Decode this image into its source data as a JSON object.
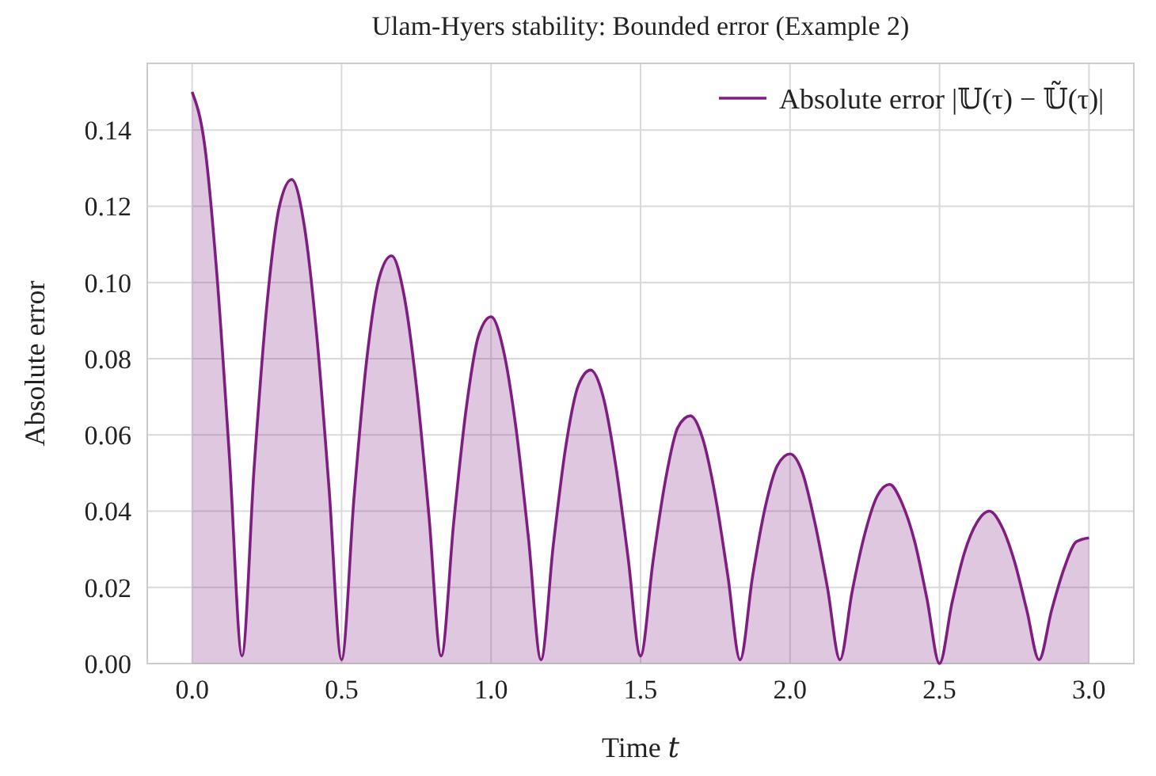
{
  "chart_data": {
    "type": "area",
    "title": "Ulam-Hyers stability: Bounded error (Example 2)",
    "xlabel": "Time 𝑡",
    "ylabel": "Absolute error",
    "x": [
      0,
      0.042,
      0.083,
      0.125,
      0.167,
      0.208,
      0.25,
      0.292,
      0.333,
      0.375,
      0.417,
      0.458,
      0.5,
      0.542,
      0.583,
      0.625,
      0.667,
      0.708,
      0.75,
      0.792,
      0.833,
      0.875,
      0.917,
      0.958,
      1,
      1.042,
      1.083,
      1.125,
      1.167,
      1.208,
      1.25,
      1.292,
      1.333,
      1.375,
      1.417,
      1.458,
      1.5,
      1.542,
      1.583,
      1.625,
      1.667,
      1.708,
      1.75,
      1.792,
      1.833,
      1.875,
      1.917,
      1.958,
      2,
      2.042,
      2.083,
      2.125,
      2.167,
      2.208,
      2.25,
      2.292,
      2.333,
      2.375,
      2.417,
      2.458,
      2.5,
      2.542,
      2.583,
      2.625,
      2.667,
      2.708,
      2.75,
      2.792,
      2.833,
      2.875,
      2.917,
      2.958,
      3
    ],
    "series": [
      {
        "name": "Absolute error |𝕌(τ) − 𝕌̃(τ)|",
        "color": "#7e1e80",
        "values": [
          0.15,
          0.136,
          0.102,
          0.054,
          0.002,
          0.052,
          0.094,
          0.12,
          0.127,
          0.115,
          0.086,
          0.046,
          0.001,
          0.044,
          0.079,
          0.101,
          0.107,
          0.097,
          0.073,
          0.039,
          0.002,
          0.037,
          0.067,
          0.086,
          0.091,
          0.082,
          0.062,
          0.033,
          0.001,
          0.031,
          0.057,
          0.073,
          0.077,
          0.07,
          0.052,
          0.028,
          0.002,
          0.027,
          0.048,
          0.062,
          0.065,
          0.059,
          0.044,
          0.023,
          0.001,
          0.023,
          0.041,
          0.052,
          0.055,
          0.05,
          0.037,
          0.02,
          0.001,
          0.019,
          0.034,
          0.044,
          0.047,
          0.042,
          0.032,
          0.017,
          0.0,
          0.016,
          0.029,
          0.037,
          0.04,
          0.036,
          0.027,
          0.014,
          0.001,
          0.014,
          0.025,
          0.032,
          0.033
        ]
      }
    ],
    "xlim": [
      -0.15,
      3.15
    ],
    "xticks": [
      {
        "value": 0,
        "label": "0.0"
      },
      {
        "value": 0.5,
        "label": "0.5"
      },
      {
        "value": 1,
        "label": "1.0"
      },
      {
        "value": 1.5,
        "label": "1.5"
      },
      {
        "value": 2,
        "label": "2.0"
      },
      {
        "value": 2.5,
        "label": "2.5"
      },
      {
        "value": 3,
        "label": "3.0"
      }
    ],
    "ylim": [
      0,
      0.1575
    ],
    "yticks": [
      {
        "value": 0,
        "label": "0.00"
      },
      0.02,
      0.04,
      0.06,
      0.08,
      {
        "value": 0.1,
        "label": "0.10"
      },
      0.12,
      0.14
    ],
    "grid": true,
    "legend": "top right"
  }
}
